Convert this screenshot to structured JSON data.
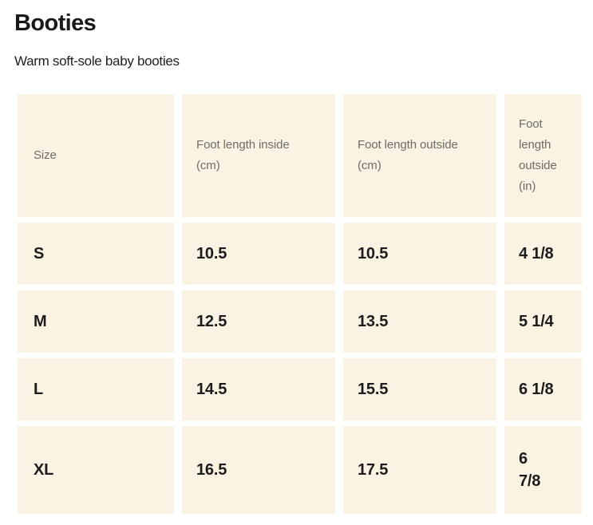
{
  "page": {
    "title": "Booties",
    "subtitle": "Warm soft-sole baby booties"
  },
  "colors": {
    "page_bg": "#ffffff",
    "cell_bg": "#faf2e3",
    "header_text": "#6e6c68",
    "data_text": "#1c1c1c",
    "title_text": "#191919"
  },
  "size_chart": {
    "columns": [
      {
        "key": "size",
        "label": "Size"
      },
      {
        "key": "inside_cm",
        "label": "Foot length inside (cm)"
      },
      {
        "key": "outside_cm",
        "label": "Foot length outside (cm)"
      },
      {
        "key": "outside_in",
        "label": "Foot length outside (in)"
      }
    ],
    "rows": [
      {
        "size": "S",
        "inside_cm": "10.5",
        "outside_cm": "10.5",
        "outside_in": "4 1/8"
      },
      {
        "size": "M",
        "inside_cm": "12.5",
        "outside_cm": "13.5",
        "outside_in": "5 1/4"
      },
      {
        "size": "L",
        "inside_cm": "14.5",
        "outside_cm": "15.5",
        "outside_in": "6 1/8"
      },
      {
        "size": "XL",
        "inside_cm": "16.5",
        "outside_cm": "17.5",
        "outside_in": "6\n7/8"
      }
    ]
  }
}
